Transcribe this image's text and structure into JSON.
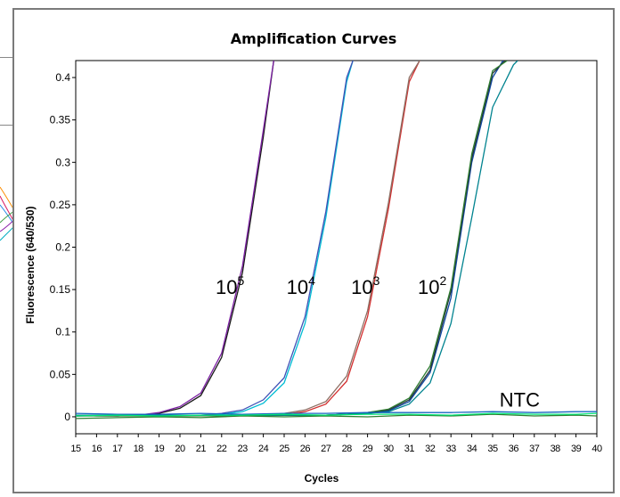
{
  "chart_data": {
    "type": "line",
    "title": "Amplification Curves",
    "xlabel": "Cycles",
    "ylabel": "Fluorescence (640/530)",
    "xlim": [
      15,
      40
    ],
    "ylim": [
      -0.02,
      0.42
    ],
    "x_ticks": [
      15,
      16,
      17,
      18,
      19,
      20,
      21,
      22,
      23,
      24,
      25,
      26,
      27,
      28,
      29,
      30,
      31,
      32,
      33,
      34,
      35,
      36,
      37,
      38,
      39,
      40
    ],
    "y_ticks": [
      0,
      0.05,
      0.1,
      0.15,
      0.2,
      0.25,
      0.3,
      0.35,
      0.4
    ],
    "y_tick_labels": [
      "0",
      "0.05",
      "0.1",
      "0.15",
      "0.2",
      "0.25",
      "0.3",
      "0.35",
      "0.4"
    ],
    "grid": false,
    "annotations": [
      {
        "base": "10",
        "exp": "5",
        "x": 22.4,
        "y": 0.145
      },
      {
        "base": "10",
        "exp": "4",
        "x": 25.8,
        "y": 0.145
      },
      {
        "base": "10",
        "exp": "3",
        "x": 28.9,
        "y": 0.145
      },
      {
        "base": "10",
        "exp": "2",
        "x": 32.1,
        "y": 0.145
      },
      {
        "base": "NTC",
        "exp": "",
        "x": 36.3,
        "y": 0.012
      }
    ],
    "series": [
      {
        "color": "#1a1a1a",
        "x": [
          15,
          16,
          17,
          18,
          19,
          20,
          21,
          22,
          23,
          24,
          24.5
        ],
        "y": [
          0.002,
          0.001,
          0.001,
          0.002,
          0.004,
          0.01,
          0.025,
          0.07,
          0.17,
          0.33,
          0.42
        ]
      },
      {
        "color": "#7b1fa2",
        "x": [
          15,
          16,
          17,
          18,
          19,
          20,
          21,
          22,
          23,
          24,
          24.5
        ],
        "y": [
          0.001,
          0.002,
          0.001,
          0.002,
          0.005,
          0.012,
          0.028,
          0.075,
          0.178,
          0.338,
          0.42
        ]
      },
      {
        "color": "#00bcd4",
        "x": [
          15,
          18,
          21,
          22,
          23,
          24,
          25,
          26,
          27,
          28,
          28.3
        ],
        "y": [
          0.002,
          0.002,
          0.002,
          0.003,
          0.006,
          0.016,
          0.04,
          0.11,
          0.235,
          0.395,
          0.42
        ]
      },
      {
        "color": "#3f51b5",
        "x": [
          15,
          18,
          21,
          22,
          23,
          24,
          25,
          26,
          27,
          28,
          28.3
        ],
        "y": [
          0.001,
          0.002,
          0.002,
          0.004,
          0.008,
          0.02,
          0.046,
          0.118,
          0.242,
          0.4,
          0.42
        ]
      },
      {
        "color": "#d32f2f",
        "x": [
          15,
          20,
          24,
          25,
          26,
          27,
          28,
          29,
          30,
          31,
          31.5
        ],
        "y": [
          0.001,
          0.002,
          0.002,
          0.003,
          0.006,
          0.015,
          0.042,
          0.118,
          0.245,
          0.395,
          0.42
        ]
      },
      {
        "color": "#8d6e63",
        "x": [
          15,
          20,
          24,
          25,
          26,
          27,
          28,
          29,
          30,
          31,
          31.5
        ],
        "y": [
          0.002,
          0.001,
          0.002,
          0.004,
          0.008,
          0.018,
          0.048,
          0.125,
          0.252,
          0.4,
          0.42
        ]
      },
      {
        "color": "#0d47a1",
        "x": [
          15,
          20,
          27,
          28,
          29,
          30,
          31,
          32,
          33,
          34,
          35,
          35.5
        ],
        "y": [
          0.002,
          0.002,
          0.002,
          0.003,
          0.004,
          0.007,
          0.018,
          0.052,
          0.14,
          0.3,
          0.4,
          0.42
        ]
      },
      {
        "color": "#263238",
        "x": [
          15,
          20,
          27,
          28,
          29,
          30,
          31,
          32,
          33,
          34,
          35,
          35.6
        ],
        "y": [
          0.001,
          0.002,
          0.002,
          0.003,
          0.005,
          0.008,
          0.02,
          0.055,
          0.148,
          0.305,
          0.405,
          0.42
        ]
      },
      {
        "color": "#2e7d32",
        "x": [
          15,
          20,
          27,
          28,
          29,
          30,
          31,
          32,
          33,
          34,
          35,
          35.7
        ],
        "y": [
          0.001,
          0.001,
          0.002,
          0.003,
          0.005,
          0.009,
          0.022,
          0.06,
          0.152,
          0.31,
          0.408,
          0.42
        ]
      },
      {
        "color": "#00838f",
        "x": [
          15,
          20,
          27,
          28,
          29,
          30,
          31,
          32,
          33,
          34,
          35,
          36,
          36.2
        ],
        "y": [
          0.002,
          0.002,
          0.002,
          0.003,
          0.004,
          0.006,
          0.015,
          0.04,
          0.11,
          0.235,
          0.365,
          0.415,
          0.42
        ]
      },
      {
        "color": "#1565c0",
        "x": [
          15,
          17,
          19,
          21,
          23,
          25,
          27,
          29,
          31,
          33,
          35,
          37,
          39,
          40
        ],
        "y": [
          0.004,
          0.003,
          0.003,
          0.004,
          0.003,
          0.004,
          0.004,
          0.005,
          0.005,
          0.005,
          0.006,
          0.005,
          0.006,
          0.006
        ]
      },
      {
        "color": "#2e7d32",
        "x": [
          15,
          17,
          19,
          21,
          23,
          25,
          27,
          29,
          31,
          33,
          35,
          37,
          39,
          40
        ],
        "y": [
          -0.002,
          -0.001,
          0.0,
          -0.001,
          0.001,
          0.0,
          0.001,
          0.0,
          0.002,
          0.001,
          0.003,
          0.001,
          0.002,
          0.001
        ]
      },
      {
        "color": "#00e676",
        "x": [
          15,
          17,
          19,
          21,
          23,
          25,
          27,
          29,
          31,
          33,
          35,
          37,
          39,
          40
        ],
        "y": [
          0.001,
          0.002,
          0.001,
          0.002,
          0.002,
          0.003,
          0.002,
          0.003,
          0.003,
          0.002,
          0.004,
          0.003,
          0.003,
          0.004
        ]
      }
    ]
  }
}
